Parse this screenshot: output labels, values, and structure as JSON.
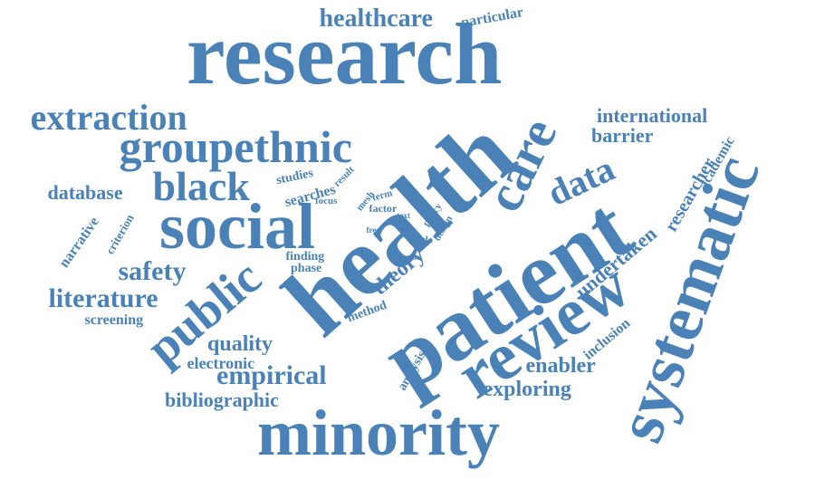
{
  "color": "#4a82b7",
  "words": {
    "research": "research",
    "health": "health",
    "patient": "patient",
    "review": "review",
    "systematic": "systematic",
    "minority": "minority",
    "social": "social",
    "care": "care",
    "public": "public",
    "groupethnic": "groupethnic",
    "extraction": "extraction",
    "black": "black",
    "healthcare": "healthcare",
    "particular": "particular",
    "international": "international",
    "barrier": "barrier",
    "data": "data",
    "database": "database",
    "literature": "literature",
    "safety": "safety",
    "screening": "screening",
    "quality": "quality",
    "electronic": "electronic",
    "empirical": "empirical",
    "bibliographic": "bibliographic",
    "exploring": "exploring",
    "enabler": "enabler",
    "inclusion": "inclusion",
    "undertaken": "undertaken",
    "researcher": "researcher",
    "academic": "academic",
    "theory": "theory",
    "finding": "finding",
    "phase": "phase",
    "method": "method",
    "analysis": "analysis",
    "studies": "studies",
    "searches": "searches",
    "result": "result",
    "focus": "focus",
    "mesh": "mesh",
    "term": "term",
    "factor": "factor",
    "text": "text",
    "free": "free",
    "policy": "policy",
    "design": "design",
    "cycle": "cycle",
    "proc": "proc",
    "narrative": "narrative",
    "criterion": "criterion"
  }
}
